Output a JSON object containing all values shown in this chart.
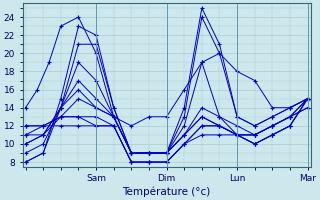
{
  "xlabel": "Température (°c)",
  "bg_color": "#cce8ec",
  "grid_color": "#aacccc",
  "line_color": "#0000cc",
  "yticks": [
    8,
    10,
    12,
    14,
    16,
    18,
    20,
    22,
    24
  ],
  "xtick_positions": [
    24,
    48,
    72,
    96
  ],
  "xtick_labels": [
    "Sam",
    "Dim",
    "Lun",
    "Mar"
  ],
  "lines": [
    {
      "x": [
        0,
        6,
        12,
        18,
        24,
        30,
        36,
        42,
        48,
        54,
        60,
        66,
        72,
        78,
        84,
        90,
        96
      ],
      "y": [
        8,
        9,
        15,
        23,
        22,
        14,
        9,
        9,
        9,
        14,
        25,
        21,
        13,
        12,
        13,
        14,
        15
      ]
    },
    {
      "x": [
        0,
        6,
        12,
        18,
        24,
        30,
        36,
        42,
        48,
        54,
        60,
        66,
        72,
        78,
        84,
        90,
        96
      ],
      "y": [
        8,
        9,
        14,
        21,
        21,
        14,
        9,
        9,
        9,
        13,
        24,
        20,
        13,
        12,
        13,
        14,
        15
      ]
    },
    {
      "x": [
        0,
        6,
        12,
        18,
        24,
        30,
        36,
        42,
        48,
        54,
        60,
        66,
        72,
        78,
        84,
        90,
        96
      ],
      "y": [
        9,
        10,
        14,
        19,
        17,
        13,
        9,
        9,
        9,
        12,
        19,
        13,
        12,
        11,
        12,
        13,
        14
      ]
    },
    {
      "x": [
        0,
        6,
        12,
        18,
        24,
        30,
        36,
        42,
        48,
        54,
        60,
        66,
        72,
        78,
        84,
        90,
        96
      ],
      "y": [
        10,
        11,
        14,
        17,
        15,
        13,
        9,
        9,
        9,
        11,
        14,
        13,
        11,
        11,
        12,
        13,
        14
      ]
    },
    {
      "x": [
        0,
        6,
        12,
        18,
        24,
        30,
        36,
        42,
        48,
        54,
        60,
        66,
        72,
        78,
        84,
        90,
        96
      ],
      "y": [
        10,
        11,
        14,
        16,
        14,
        13,
        9,
        9,
        9,
        11,
        13,
        12,
        11,
        11,
        12,
        13,
        15
      ]
    },
    {
      "x": [
        0,
        6,
        12,
        18,
        24,
        30,
        36,
        42,
        48,
        54,
        60,
        66,
        72,
        78,
        84,
        90,
        96
      ],
      "y": [
        11,
        11,
        13,
        15,
        14,
        13,
        9,
        9,
        9,
        11,
        13,
        12,
        11,
        11,
        12,
        13,
        15
      ]
    },
    {
      "x": [
        0,
        6,
        12,
        18,
        24,
        30,
        36,
        42,
        48,
        54,
        60,
        66,
        72,
        78,
        84,
        90,
        96
      ],
      "y": [
        11,
        12,
        13,
        13,
        13,
        12,
        8,
        8,
        8,
        10,
        12,
        12,
        11,
        10,
        11,
        12,
        15
      ]
    },
    {
      "x": [
        0,
        6,
        12,
        18,
        24,
        30,
        36,
        42,
        48,
        54,
        60,
        66,
        72,
        78,
        84,
        90,
        96
      ],
      "y": [
        12,
        12,
        13,
        13,
        12,
        12,
        8,
        8,
        8,
        10,
        12,
        12,
        11,
        10,
        11,
        12,
        15
      ]
    },
    {
      "x": [
        0,
        6,
        12,
        18,
        24,
        30,
        36,
        42,
        48,
        54,
        60,
        66,
        72,
        78,
        84,
        90,
        96
      ],
      "y": [
        12,
        12,
        12,
        12,
        12,
        12,
        8,
        8,
        8,
        10,
        11,
        11,
        11,
        10,
        11,
        12,
        15
      ]
    },
    {
      "x": [
        0,
        4,
        8,
        12,
        18,
        24,
        30,
        36,
        42,
        48,
        54,
        60,
        66,
        72,
        78,
        84,
        90,
        96
      ],
      "y": [
        14,
        16,
        19,
        23,
        24,
        20,
        13,
        12,
        13,
        13,
        16,
        19,
        20,
        18,
        17,
        14,
        14,
        15
      ]
    }
  ]
}
